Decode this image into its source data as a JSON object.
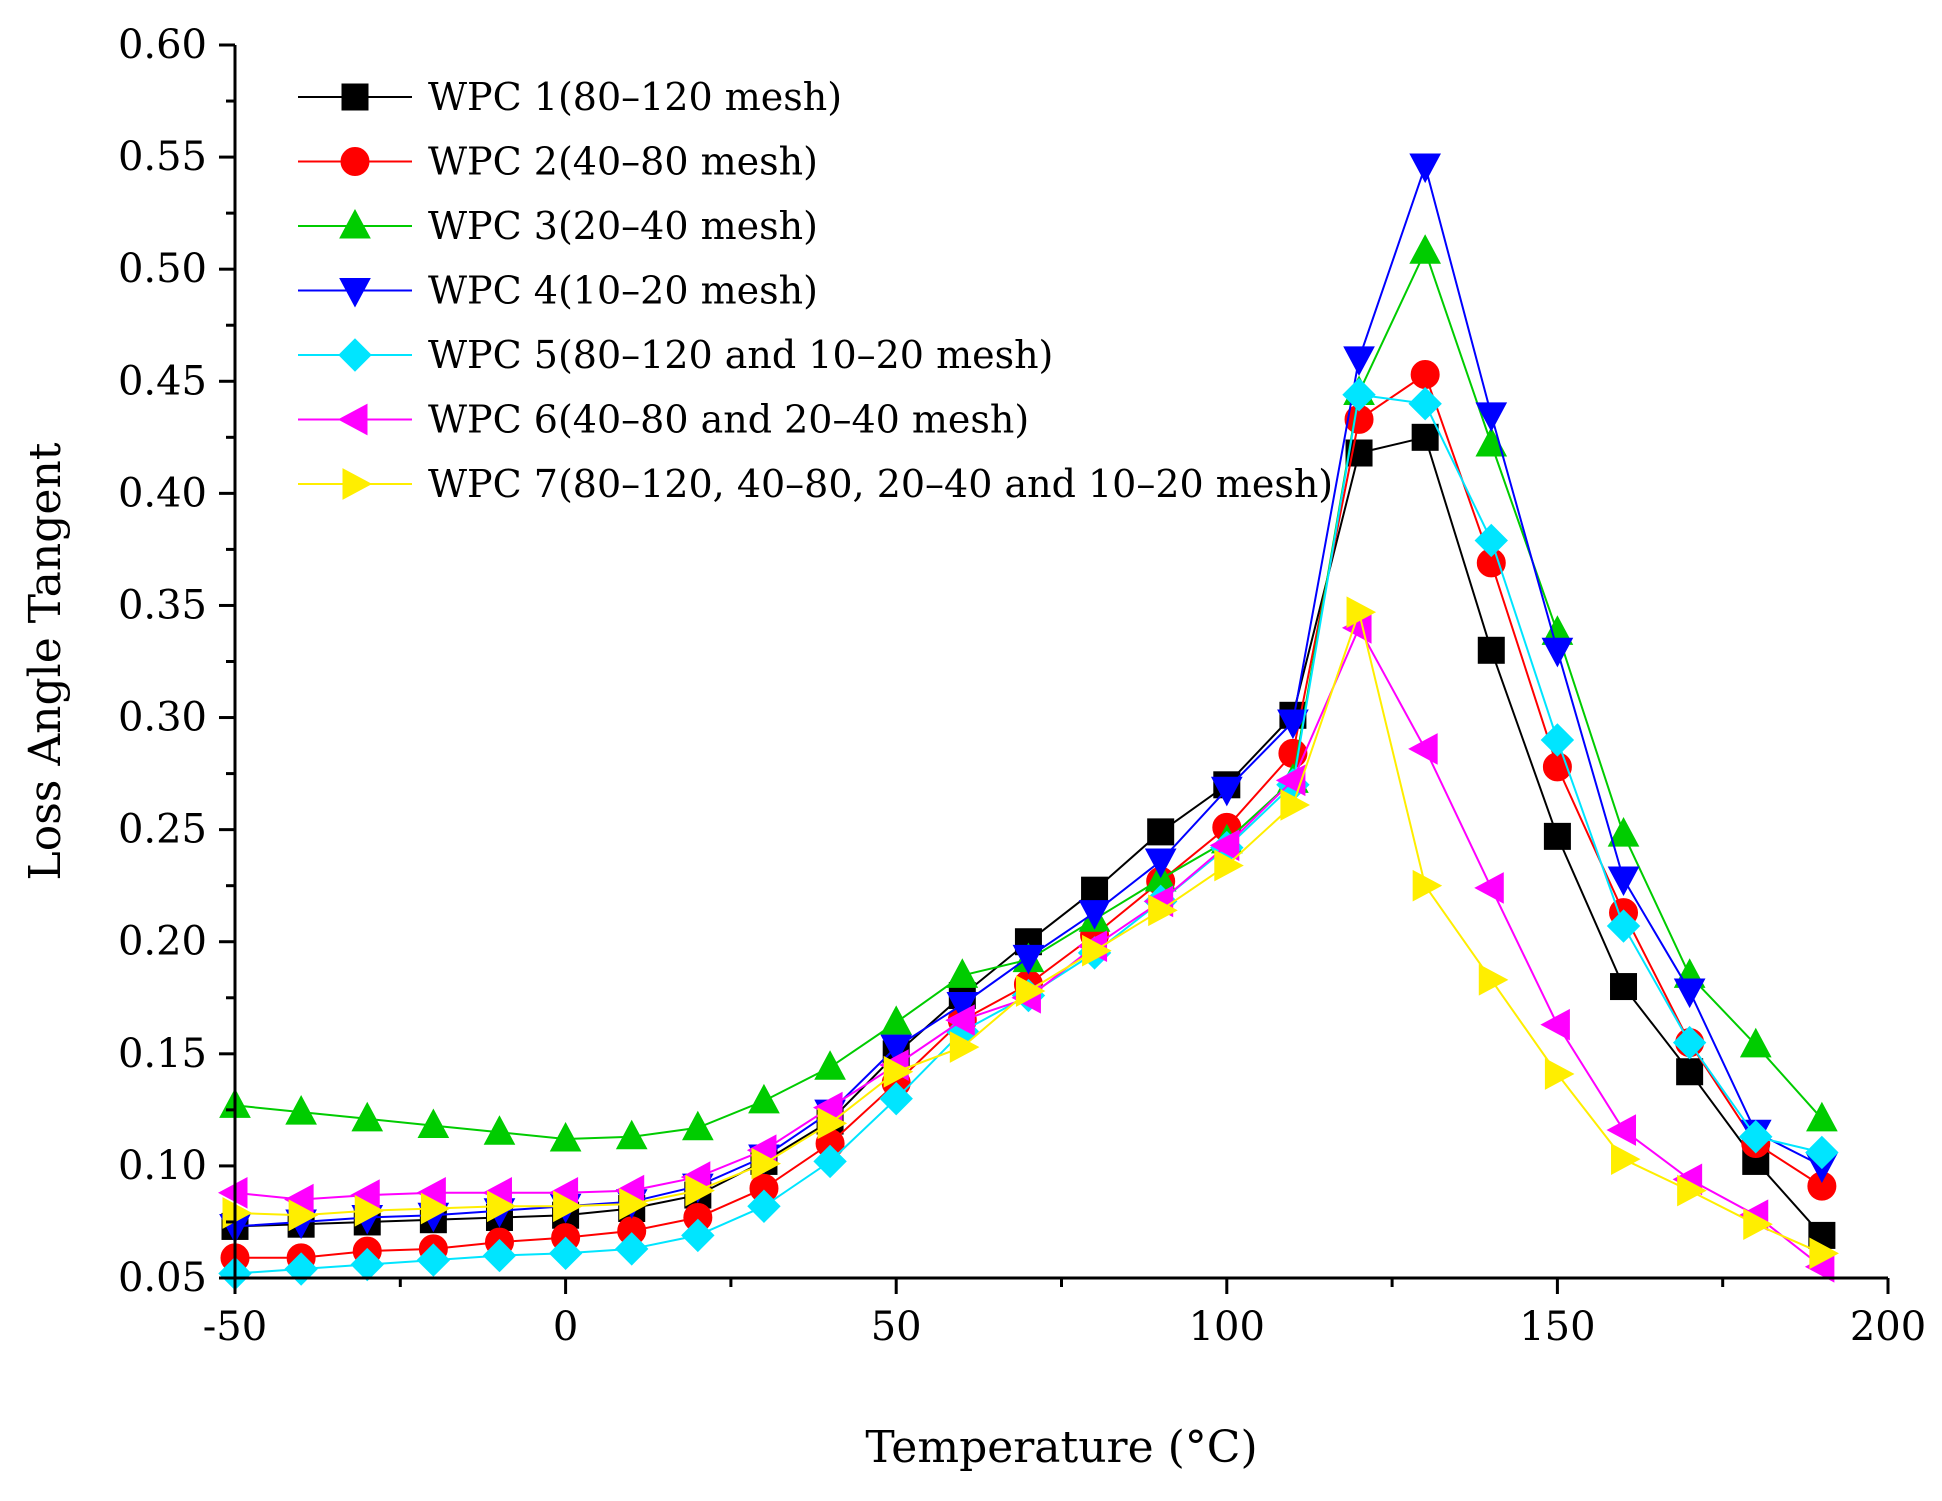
{
  "chart_data": {
    "type": "line",
    "title": "",
    "xlabel": "Temperature (°C)",
    "ylabel": "Loss Angle Tangent",
    "xlim": [
      -50,
      200
    ],
    "ylim": [
      0.05,
      0.6
    ],
    "x_ticks": [
      "-50",
      "0",
      "50",
      "100",
      "150",
      "200"
    ],
    "y_ticks": [
      "0.05",
      "0.10",
      "0.15",
      "0.20",
      "0.25",
      "0.30",
      "0.35",
      "0.40",
      "0.45",
      "0.50",
      "0.55",
      "0.60"
    ],
    "grid": false,
    "legend_position": "top-left",
    "x": [
      -50,
      -40,
      -30,
      -20,
      -10,
      0,
      10,
      20,
      30,
      40,
      50,
      60,
      70,
      80,
      90,
      100,
      110,
      120,
      130,
      140,
      150,
      160,
      170,
      180,
      190
    ],
    "series": [
      {
        "name": "WPC 1(80–120 mesh)",
        "color": "#000000",
        "marker": "square",
        "values": [
          0.073,
          0.074,
          0.075,
          0.076,
          0.077,
          0.078,
          0.081,
          0.087,
          0.102,
          0.12,
          0.15,
          0.176,
          0.2,
          0.223,
          0.249,
          0.27,
          0.301,
          0.418,
          0.425,
          0.33,
          0.247,
          0.18,
          0.142,
          0.102,
          0.069
        ]
      },
      {
        "name": "WPC 2(40–80 mesh)",
        "color": "#ff0000",
        "marker": "circle",
        "values": [
          0.059,
          0.059,
          0.062,
          0.063,
          0.066,
          0.068,
          0.071,
          0.077,
          0.09,
          0.11,
          0.137,
          0.165,
          0.181,
          0.203,
          0.227,
          0.251,
          0.284,
          0.433,
          0.453,
          0.369,
          0.278,
          0.213,
          0.155,
          0.11,
          0.091
        ]
      },
      {
        "name": "WPC 3(20–40 mesh)",
        "color": "#00cc00",
        "marker": "triangle-up",
        "values": [
          0.127,
          0.124,
          0.121,
          0.118,
          0.115,
          0.112,
          0.113,
          0.117,
          0.129,
          0.144,
          0.164,
          0.185,
          0.192,
          0.21,
          0.228,
          0.245,
          0.272,
          0.445,
          0.508,
          0.422,
          0.338,
          0.248,
          0.185,
          0.154,
          0.121
        ]
      },
      {
        "name": "WPC 4(10–20 mesh)",
        "color": "#0000ff",
        "marker": "triangle-down",
        "values": [
          0.073,
          0.075,
          0.077,
          0.078,
          0.08,
          0.082,
          0.084,
          0.091,
          0.104,
          0.124,
          0.153,
          0.172,
          0.193,
          0.213,
          0.236,
          0.268,
          0.298,
          0.46,
          0.546,
          0.435,
          0.33,
          0.228,
          0.178,
          0.115,
          0.1
        ]
      },
      {
        "name": "WPC 5(80–120 and 10–20 mesh)",
        "color": "#00e5ff",
        "marker": "diamond",
        "values": [
          0.052,
          0.054,
          0.056,
          0.058,
          0.06,
          0.061,
          0.063,
          0.069,
          0.082,
          0.102,
          0.13,
          0.16,
          0.176,
          0.195,
          0.218,
          0.242,
          0.27,
          0.444,
          0.44,
          0.379,
          0.29,
          0.207,
          0.155,
          0.113,
          0.106
        ]
      },
      {
        "name": "WPC 6(40–80 and 20–40 mesh)",
        "color": "#ff00ff",
        "marker": "triangle-left",
        "values": [
          0.088,
          0.085,
          0.087,
          0.088,
          0.088,
          0.088,
          0.089,
          0.095,
          0.107,
          0.126,
          0.145,
          0.165,
          0.175,
          0.198,
          0.218,
          0.243,
          0.272,
          0.34,
          0.286,
          0.224,
          0.163,
          0.116,
          0.094,
          0.078,
          0.055
        ]
      },
      {
        "name": "WPC 7(80–120, 40–80, 20–40 and 10–20 mesh)",
        "color": "#ffee00",
        "marker": "triangle-right",
        "values": [
          0.079,
          0.078,
          0.08,
          0.081,
          0.082,
          0.082,
          0.083,
          0.089,
          0.101,
          0.119,
          0.142,
          0.153,
          0.178,
          0.196,
          0.214,
          0.234,
          0.261,
          0.347,
          0.225,
          0.183,
          0.141,
          0.103,
          0.089,
          0.074,
          0.061
        ]
      }
    ]
  }
}
